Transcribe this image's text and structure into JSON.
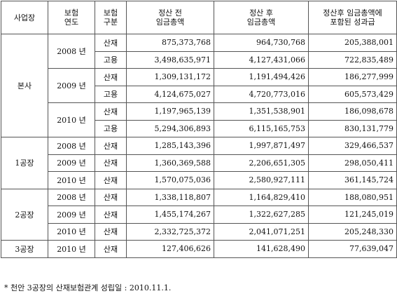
{
  "table": {
    "header": [
      "사업장",
      "보험\n연도",
      "보험\n구분",
      "정산 전\n임금총액",
      "정산 후\n임금총액",
      "정산후     임금총액에\n포함된  성과급"
    ],
    "groups": [
      {
        "site": "본사",
        "years": [
          {
            "year": "2008 년",
            "rows": [
              {
                "type": "산재",
                "before": "875,373,768",
                "after": "964,730,768",
                "bonus": "205,388,001"
              },
              {
                "type": "고용",
                "before": "3,498,635,971",
                "after": "4,127,431,066",
                "bonus": "722,835,489"
              }
            ]
          },
          {
            "year": "2009 년",
            "rows": [
              {
                "type": "산재",
                "before": "1,309,131,172",
                "after": "1,191,494,426",
                "bonus": "186,277,999"
              },
              {
                "type": "고용",
                "before": "4,124,675,027",
                "after": "4,720,773,016",
                "bonus": "605,573,429"
              }
            ]
          },
          {
            "year": "2010 년",
            "rows": [
              {
                "type": "산재",
                "before": "1,197,965,139",
                "after": "1,351,538,901",
                "bonus": "186,098,678"
              },
              {
                "type": "고용",
                "before": "5,294,306,893",
                "after": "6,115,165,753",
                "bonus": "830,131,779"
              }
            ]
          }
        ]
      },
      {
        "site": "1공장",
        "years": [
          {
            "year": "2008 년",
            "rows": [
              {
                "type": "산재",
                "before": "1,285,143,396",
                "after": "1,997,871,497",
                "bonus": "329,466,537"
              }
            ]
          },
          {
            "year": "2009 년",
            "rows": [
              {
                "type": "산재",
                "before": "1,360,369,588",
                "after": "2,206,651,305",
                "bonus": "298,050,411"
              }
            ]
          },
          {
            "year": "2010 년",
            "rows": [
              {
                "type": "산재",
                "before": "1,570,075,036",
                "after": "2,580,927,111",
                "bonus": "361,145,724"
              }
            ]
          }
        ]
      },
      {
        "site": "2공장",
        "years": [
          {
            "year": "2008 년",
            "rows": [
              {
                "type": "산재",
                "before": "1,338,118,807",
                "after": "1,164,829,410",
                "bonus": "188,080,951"
              }
            ]
          },
          {
            "year": "2009 년",
            "rows": [
              {
                "type": "산재",
                "before": "1,455,174,267",
                "after": "1,322,627,285",
                "bonus": "121,245,019"
              }
            ]
          },
          {
            "year": "2010 년",
            "rows": [
              {
                "type": "산재",
                "before": "2,332,725,372",
                "after": "2,041,071,251",
                "bonus": "205,248,330"
              }
            ]
          }
        ]
      },
      {
        "site": "3공장",
        "years": [
          {
            "year": "2010 년",
            "rows": [
              {
                "type": "산재",
                "before": "127,406,626",
                "after": "141,628,490",
                "bonus": "77,639,047"
              }
            ]
          }
        ]
      }
    ]
  },
  "footnote": "* 천안 3공장의 산재보험관계 성립일 : 2010.11.1."
}
